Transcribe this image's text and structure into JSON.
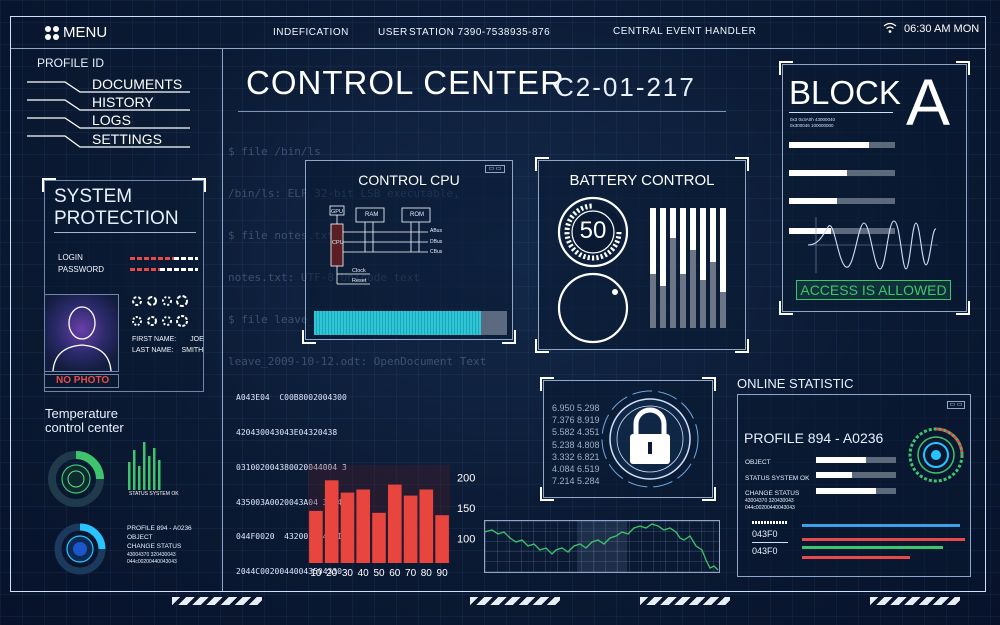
{
  "topbar": {
    "menu_label": "MENU",
    "identification": "INDEFICATION",
    "user_label": "USER",
    "station": "STATION 7390-7538935-876",
    "central_event": "CENTRAL EVENT HANDLER",
    "time": "06:30 AM MON"
  },
  "sidebar": {
    "profile": "PROFILE",
    "id": "ID",
    "links": [
      "DOCUMENTS",
      "HISTORY",
      "LOGS",
      "SETTINGS"
    ]
  },
  "system_protection": {
    "title_line1": "SYSTEM",
    "title_line2": "PROTECTION",
    "login_label": "LOGIN",
    "password_label": "PASSWORD",
    "no_photo": "NO PHOTO",
    "first_name_label": "FIRST NAME:",
    "first_name": "JOE",
    "last_name_label": "LAST NAME:",
    "last_name": "SMITH"
  },
  "temperature": {
    "title_line1": "Temperature",
    "title_line2": "control center",
    "eq_caption": "STATUS SYSTEM OK",
    "profile": "PROFILE 894 - A0236",
    "object": "OBJECT",
    "change_status": "CHANGE STATUS",
    "code_line1": "43004370  320430043",
    "code_line2": "044c00200440043043"
  },
  "header": {
    "title": "CONTROL CENTER",
    "code": "C2-01-217"
  },
  "terminal": [
    "$ file /bin/ls",
    "/bin/ls: ELF 32-bit LSB executable,",
    "$ file notes.txt",
    "notes.txt: UTF-8 Unicode text",
    "$ file leave_2009-10-12.odt",
    "leave_2009-10-12.odt: OpenDocument Text"
  ],
  "control_cpu": {
    "title": "CONTROL CPU",
    "gpu": "GPU",
    "ram": "RAM",
    "rom": "ROM",
    "cpu": "CPU",
    "abus": "ABus",
    "dbus": "DBus",
    "cbus": "CBus",
    "clock": "Clock",
    "reset": "Reset"
  },
  "battery": {
    "title": "BATTERY CONTROL",
    "value": "50",
    "bar_levels": [
      0.45,
      0.35,
      0.75,
      0.45,
      0.65,
      0.4,
      0.55,
      0.3
    ]
  },
  "block": {
    "title": "BLOCK",
    "letter": "A",
    "tiny_line1": "0x3  0x3A0h  43000040",
    "tiny_line2": "0x300046  100000000",
    "bars": [
      0.75,
      0.55,
      0.45,
      0.4
    ],
    "access": "ACCESS IS ALLOWED"
  },
  "hex_dump": [
    "A043E04  C00B8002004300",
    "420430043043E04320438",
    "031002004380020044004 3",
    "435003A0020043A04 3B044",
    "044F0020  432002004  I04",
    "2044C00200440043504330"
  ],
  "lock_panel": {
    "numbers": [
      "6.950 5.298",
      "7.376 8.919",
      "5.582 4.351",
      "5.238 4.808",
      "3.332 6.821",
      "4.084 6.519",
      "7.214 5.284"
    ]
  },
  "chart_data": {
    "type": "bar",
    "categories": [
      "10",
      "20",
      "30",
      "40",
      "50",
      "60",
      "70",
      "80",
      "90"
    ],
    "values": [
      145,
      195,
      175,
      180,
      142,
      188,
      170,
      180,
      138
    ],
    "ylim": [
      60,
      220
    ],
    "yticks": [
      "200",
      "150",
      "100"
    ],
    "bar_color": "#e8453f"
  },
  "online_statistic": {
    "title": "ONLINE STATISTIC",
    "profile": "PROFILE 894 - A0236",
    "object": "OBJECT",
    "status_ok": "STATUS SYSTEM OK",
    "change_status": "CHANGE STATUS",
    "code_line1": "43004370  320430043",
    "code_line2": "044c00200440043043",
    "code_a": "043F0",
    "code_b": "043F0",
    "progress": [
      0.62,
      0.45,
      0.75
    ],
    "color_bars": [
      {
        "color": "#3aa0e8",
        "level": 0.95
      },
      {
        "color": "#e84a4a",
        "level": 0.98
      },
      {
        "color": "#3ec46d",
        "level": 0.85
      },
      {
        "color": "#e84a4a",
        "level": 0.65
      }
    ]
  },
  "colors": {
    "accent_blue": "#29c4ff",
    "accent_green": "#3ec46d",
    "accent_red": "#e8453f",
    "background": "#0b1a33"
  }
}
